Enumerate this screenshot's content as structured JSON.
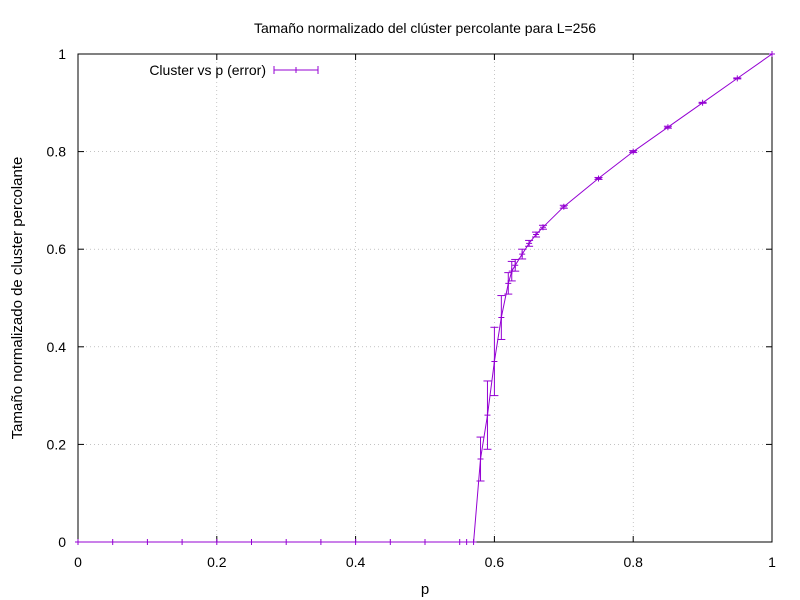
{
  "chart_data": {
    "type": "line",
    "title": "Tamaño normalizado del clúster percolante para L=256",
    "xlabel": "p",
    "ylabel": "Tamaño normalizado de cluster percolante",
    "xlim": [
      0,
      1
    ],
    "ylim": [
      0,
      1
    ],
    "xticks": [
      0,
      0.2,
      0.4,
      0.6,
      0.8,
      1
    ],
    "yticks": [
      0,
      0.2,
      0.4,
      0.6,
      0.8,
      1
    ],
    "xtick_labels": [
      "0",
      "0.2",
      "0.4",
      "0.6",
      "0.8",
      "1"
    ],
    "ytick_labels": [
      "0",
      "0.2",
      "0.4",
      "0.6",
      "0.8",
      "1"
    ],
    "grid": true,
    "legend_position": "top-left",
    "series": [
      {
        "name": "Cluster vs p (error)",
        "color": "#9400d3",
        "x": [
          0,
          0.05,
          0.1,
          0.15,
          0.2,
          0.25,
          0.3,
          0.35,
          0.4,
          0.45,
          0.5,
          0.55,
          0.56,
          0.57,
          0.58,
          0.59,
          0.6,
          0.61,
          0.62,
          0.625,
          0.63,
          0.64,
          0.65,
          0.66,
          0.67,
          0.7,
          0.75,
          0.8,
          0.85,
          0.9,
          0.95,
          1.0
        ],
        "y": [
          0,
          0,
          0,
          0,
          0,
          0,
          0,
          0,
          0,
          0,
          0,
          0,
          0,
          0,
          0.17,
          0.26,
          0.37,
          0.46,
          0.53,
          0.555,
          0.567,
          0.59,
          0.612,
          0.63,
          0.645,
          0.687,
          0.745,
          0.8,
          0.85,
          0.9,
          0.95,
          1.0
        ],
        "err": [
          0,
          0,
          0,
          0,
          0,
          0,
          0,
          0,
          0,
          0,
          0,
          0,
          0,
          0,
          0.045,
          0.07,
          0.07,
          0.045,
          0.022,
          0.02,
          0.012,
          0.01,
          0.006,
          0.005,
          0.004,
          0.003,
          0.002,
          0.002,
          0.002,
          0.001,
          0.001,
          0
        ]
      }
    ]
  }
}
